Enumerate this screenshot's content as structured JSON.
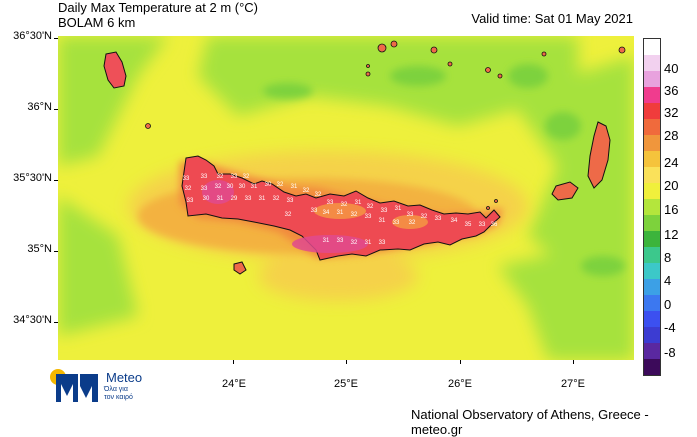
{
  "header": {
    "title_line1": "Daily Max Temperature at 2 m (°C)",
    "title_line2": "BOLAM 6 km",
    "valid_time": "Valid time: Sat 01 May 2021"
  },
  "axes": {
    "lat_labels": [
      "36°30'N",
      "36°N",
      "35°30'N",
      "35°N",
      "34°30'N"
    ],
    "lon_labels": [
      "24°E",
      "25°E",
      "26°E",
      "27°E"
    ]
  },
  "legend": {
    "labels": [
      "40",
      "36",
      "32",
      "28",
      "24",
      "20",
      "16",
      "12",
      "8",
      "4",
      "0",
      "-4",
      "-8"
    ],
    "colors": [
      "#ffffff",
      "#f2d1ef",
      "#e8a2de",
      "#f03c8e",
      "#f03c3c",
      "#f06a3c",
      "#f0963c",
      "#f5c33c",
      "#fae15a",
      "#f0f03c",
      "#b4e63c",
      "#7dd23c",
      "#3cb43c",
      "#3cc88c",
      "#3cc8c8",
      "#3ca0e6",
      "#3c78f0",
      "#3c50f0",
      "#3c3cd2",
      "#5a28a0",
      "#3c0a5a"
    ]
  },
  "map_labels": [
    {
      "v": "33"
    },
    {
      "v": "33"
    },
    {
      "v": "32"
    },
    {
      "v": "33"
    },
    {
      "v": "32"
    },
    {
      "v": "32"
    },
    {
      "v": "33"
    },
    {
      "v": "32"
    },
    {
      "v": "30"
    },
    {
      "v": "30"
    },
    {
      "v": "31"
    },
    {
      "v": "30"
    },
    {
      "v": "32"
    },
    {
      "v": "31"
    },
    {
      "v": "32"
    },
    {
      "v": "33"
    },
    {
      "v": "30"
    },
    {
      "v": "31"
    },
    {
      "v": "29"
    },
    {
      "v": "33"
    },
    {
      "v": "31"
    },
    {
      "v": "32"
    },
    {
      "v": "33"
    },
    {
      "v": "32"
    },
    {
      "v": "33"
    },
    {
      "v": "32"
    },
    {
      "v": "31"
    },
    {
      "v": "32"
    },
    {
      "v": "33"
    },
    {
      "v": "31"
    },
    {
      "v": "33"
    },
    {
      "v": "32"
    },
    {
      "v": "33"
    },
    {
      "v": "34"
    },
    {
      "v": "35"
    },
    {
      "v": "33"
    },
    {
      "v": "36"
    },
    {
      "v": "33"
    },
    {
      "v": "34"
    },
    {
      "v": "31"
    },
    {
      "v": "32"
    },
    {
      "v": "33"
    },
    {
      "v": "31"
    },
    {
      "v": "33"
    },
    {
      "v": "32"
    },
    {
      "v": "31"
    },
    {
      "v": "33"
    },
    {
      "v": "32"
    },
    {
      "v": "31"
    },
    {
      "v": "33"
    },
    {
      "v": "32"
    }
  ],
  "logo": {
    "name": "Meteo",
    "tagline_line1": "Όλα για",
    "tagline_line2": "τον καιρό"
  },
  "footer": {
    "credit": "National Observatory of Athens, Greece - meteo.gr"
  }
}
